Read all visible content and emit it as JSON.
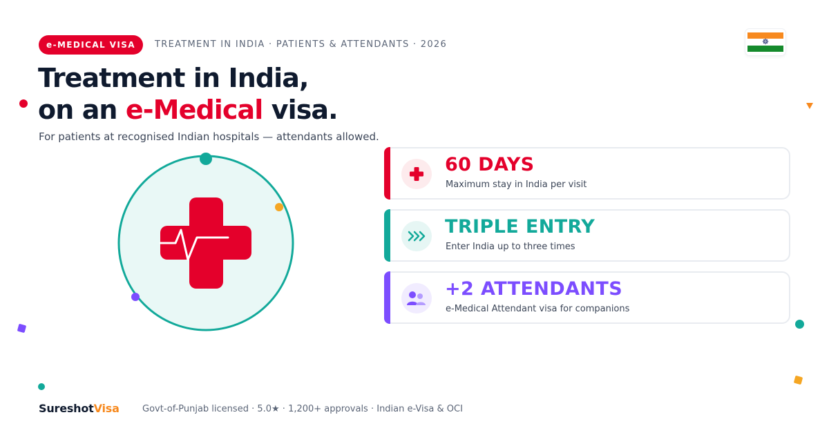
{
  "header": {
    "badge": "e-MEDICAL VISA",
    "eyebrow": "TREATMENT IN INDIA · PATIENTS & ATTENDANTS · 2026"
  },
  "flag": {
    "chakra_glyph": "☸"
  },
  "hero": {
    "title_line1": "Treatment in India,",
    "title_line2_pre": "on an ",
    "title_line2_accent": "e-Medical",
    "title_line2_post": " visa.",
    "subtitle": "For patients at recognised Indian hospitals — attendants allowed."
  },
  "cards": [
    {
      "headline": "60 DAYS",
      "desc": "Maximum stay in India per visit",
      "color": "#e4002b",
      "icon": "medical-cross-icon"
    },
    {
      "headline": "TRIPLE ENTRY",
      "desc": "Enter India up to three times",
      "color": "#12a99a",
      "icon": "triple-chevron-icon"
    },
    {
      "headline": "+2 ATTENDANTS",
      "desc": "e-Medical Attendant visa for companions",
      "color": "#7c4dff",
      "icon": "people-icon"
    }
  ],
  "footer": {
    "brand_part1": "Sureshot",
    "brand_part2": "Visa",
    "info": "Govt-of-Punjab licensed · 5.0★ · 1,200+ approvals · Indian e-Visa & OCI"
  },
  "colors": {
    "red": "#e4002b",
    "teal": "#12a99a",
    "purple": "#7c4dff",
    "orange": "#f7891e",
    "navy": "#0f1a2e"
  }
}
